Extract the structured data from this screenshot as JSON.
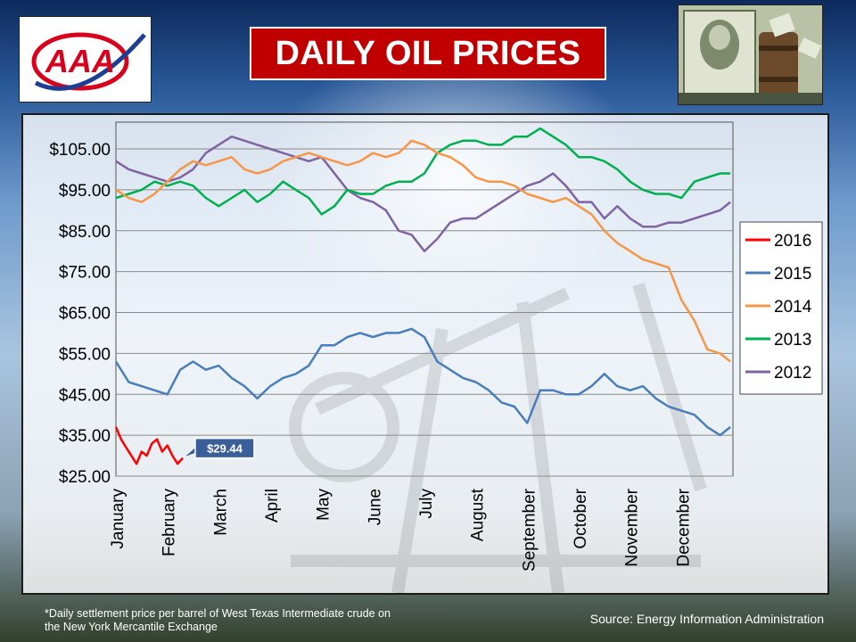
{
  "header": {
    "title": "DAILY OIL PRICES",
    "logo_text": "AAA"
  },
  "footer": {
    "footnote_line1": "*Daily settlement price per barrel of West Texas Intermediate crude on",
    "footnote_line2": "the New York Mercantile Exchange",
    "source": "Source: Energy Information Administration"
  },
  "colors": {
    "title_background": "#c00000",
    "logo_red": "#d9001b",
    "logo_blue": "#1c3f94"
  },
  "chart_data": {
    "type": "line",
    "title": "",
    "xlabel": "",
    "ylabel": "",
    "ylim": [
      25,
      112
    ],
    "yticks": [
      25,
      35,
      45,
      55,
      65,
      75,
      85,
      95,
      105
    ],
    "ytick_labels": [
      "$25.00",
      "$35.00",
      "$45.00",
      "$55.00",
      "$65.00",
      "$75.00",
      "$85.00",
      "$95.00",
      "$105.00"
    ],
    "xlim": [
      0,
      12
    ],
    "x_categories": [
      "January",
      "February",
      "March",
      "April",
      "May",
      "June",
      "July",
      "August",
      "September",
      "October",
      "November",
      "December"
    ],
    "grid": "horizontal",
    "legend_position": "right",
    "annotation": {
      "series": "2016",
      "x": 1.3,
      "y": 29.44,
      "label": "$29.44"
    },
    "series": [
      {
        "name": "2016",
        "color": "#ff0000",
        "x": [
          0.0,
          0.1,
          0.2,
          0.3,
          0.4,
          0.5,
          0.6,
          0.7,
          0.8,
          0.9,
          1.0,
          1.1,
          1.2,
          1.3
        ],
        "y": [
          37.0,
          34.0,
          32.0,
          30.0,
          28.0,
          31.0,
          30.0,
          33.0,
          34.0,
          31.0,
          32.5,
          30.0,
          28.0,
          29.44
        ]
      },
      {
        "name": "2015",
        "color": "#4a7ebb",
        "x": [
          0.0,
          0.25,
          0.5,
          0.75,
          1.0,
          1.25,
          1.5,
          1.75,
          2.0,
          2.25,
          2.5,
          2.75,
          3.0,
          3.25,
          3.5,
          3.75,
          4.0,
          4.25,
          4.5,
          4.75,
          5.0,
          5.25,
          5.5,
          5.75,
          6.0,
          6.25,
          6.5,
          6.75,
          7.0,
          7.25,
          7.5,
          7.75,
          8.0,
          8.25,
          8.5,
          8.75,
          9.0,
          9.25,
          9.5,
          9.75,
          10.0,
          10.25,
          10.5,
          10.75,
          11.0,
          11.25,
          11.5,
          11.75,
          11.95
        ],
        "y": [
          53,
          48,
          47,
          46,
          45,
          51,
          53,
          51,
          52,
          49,
          47,
          44,
          47,
          49,
          50,
          52,
          57,
          57,
          59,
          60,
          59,
          60,
          60,
          61,
          59,
          53,
          51,
          49,
          48,
          46,
          43,
          42,
          38,
          46,
          46,
          45,
          45,
          47,
          50,
          47,
          46,
          47,
          44,
          42,
          41,
          40,
          37,
          35,
          37
        ]
      },
      {
        "name": "2014",
        "color": "#f79646",
        "x": [
          0.0,
          0.25,
          0.5,
          0.75,
          1.0,
          1.25,
          1.5,
          1.75,
          2.0,
          2.25,
          2.5,
          2.75,
          3.0,
          3.25,
          3.5,
          3.75,
          4.0,
          4.25,
          4.5,
          4.75,
          5.0,
          5.25,
          5.5,
          5.75,
          6.0,
          6.25,
          6.5,
          6.75,
          7.0,
          7.25,
          7.5,
          7.75,
          8.0,
          8.25,
          8.5,
          8.75,
          9.0,
          9.25,
          9.5,
          9.75,
          10.0,
          10.25,
          10.5,
          10.75,
          11.0,
          11.25,
          11.5,
          11.75,
          11.95
        ],
        "y": [
          95,
          93,
          92,
          94,
          97,
          100,
          102,
          101,
          102,
          103,
          100,
          99,
          100,
          102,
          103,
          104,
          103,
          102,
          101,
          102,
          104,
          103,
          104,
          107,
          106,
          104,
          103,
          101,
          98,
          97,
          97,
          96,
          94,
          93,
          92,
          93,
          91,
          89,
          85,
          82,
          80,
          78,
          77,
          76,
          68,
          63,
          56,
          55,
          53
        ]
      },
      {
        "name": "2013",
        "color": "#00b050",
        "x": [
          0.0,
          0.25,
          0.5,
          0.75,
          1.0,
          1.25,
          1.5,
          1.75,
          2.0,
          2.25,
          2.5,
          2.75,
          3.0,
          3.25,
          3.5,
          3.75,
          4.0,
          4.25,
          4.5,
          4.75,
          5.0,
          5.25,
          5.5,
          5.75,
          6.0,
          6.25,
          6.5,
          6.75,
          7.0,
          7.25,
          7.5,
          7.75,
          8.0,
          8.25,
          8.5,
          8.75,
          9.0,
          9.25,
          9.5,
          9.75,
          10.0,
          10.25,
          10.5,
          10.75,
          11.0,
          11.25,
          11.5,
          11.75,
          11.95
        ],
        "y": [
          93,
          94,
          95,
          97,
          96,
          97,
          96,
          93,
          91,
          93,
          95,
          92,
          94,
          97,
          95,
          93,
          89,
          91,
          95,
          94,
          94,
          96,
          97,
          97,
          99,
          104,
          106,
          107,
          107,
          106,
          106,
          108,
          108,
          110,
          108,
          106,
          103,
          103,
          102,
          100,
          97,
          95,
          94,
          94,
          93,
          97,
          98,
          99,
          99
        ]
      },
      {
        "name": "2012",
        "color": "#8064a2",
        "x": [
          0.0,
          0.25,
          0.5,
          0.75,
          1.0,
          1.25,
          1.5,
          1.75,
          2.0,
          2.25,
          2.5,
          2.75,
          3.0,
          3.25,
          3.5,
          3.75,
          4.0,
          4.25,
          4.5,
          4.75,
          5.0,
          5.25,
          5.5,
          5.75,
          6.0,
          6.25,
          6.5,
          6.75,
          7.0,
          7.25,
          7.5,
          7.75,
          8.0,
          8.25,
          8.5,
          8.75,
          9.0,
          9.25,
          9.5,
          9.75,
          10.0,
          10.25,
          10.5,
          10.75,
          11.0,
          11.25,
          11.5,
          11.75,
          11.95
        ],
        "y": [
          102,
          100,
          99,
          98,
          97,
          98,
          100,
          104,
          106,
          108,
          107,
          106,
          105,
          104,
          103,
          102,
          103,
          99,
          95,
          93,
          92,
          90,
          85,
          84,
          80,
          83,
          87,
          88,
          88,
          90,
          92,
          94,
          96,
          97,
          99,
          96,
          92,
          92,
          88,
          91,
          88,
          86,
          86,
          87,
          87,
          88,
          89,
          90,
          92
        ]
      }
    ]
  }
}
